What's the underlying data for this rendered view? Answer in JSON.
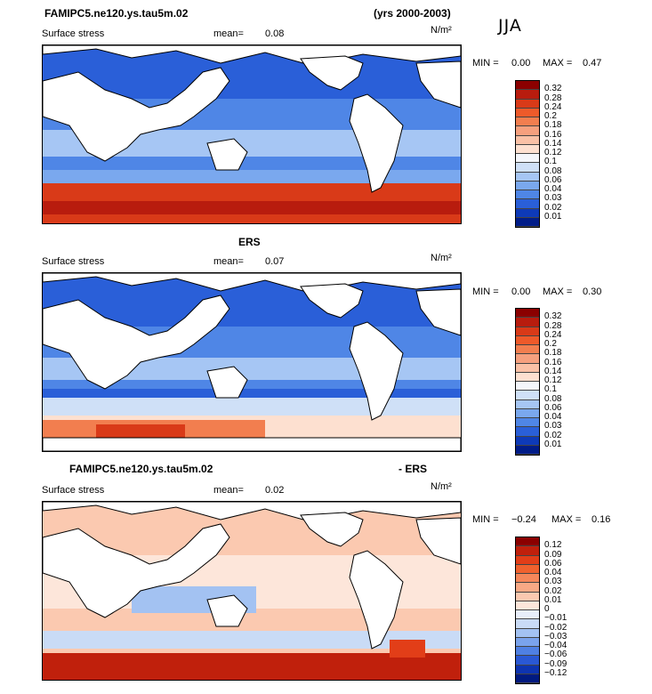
{
  "header": {
    "title_left": "FAMIPC5.ne120.ys.tau5m.02",
    "title_right": "(yrs 2000-2003)",
    "season": "JJA"
  },
  "panels": [
    {
      "title": "",
      "variable": "Surface stress",
      "mean_label": "mean=",
      "mean_value": "0.08",
      "units": "N/m²",
      "min_label": "MIN =",
      "min_value": "0.00",
      "max_label": "MAX =",
      "max_value": "0.47",
      "colorbar": [
        "0.32",
        "0.28",
        "0.24",
        "0.2",
        "0.18",
        "0.16",
        "0.14",
        "0.12",
        "0.1",
        "0.08",
        "0.06",
        "0.04",
        "0.03",
        "0.02",
        "0.01"
      ],
      "colors": [
        "#8b0000",
        "#b81c0e",
        "#d93a18",
        "#ee5a2a",
        "#f27e4f",
        "#f6a07e",
        "#fac1a6",
        "#fde0d0",
        "#f4f6fb",
        "#cfe0f7",
        "#a6c6f4",
        "#7aa8ee",
        "#4f86e6",
        "#2a5fd8",
        "#0e3ab8",
        "#001c88"
      ]
    },
    {
      "title": "ERS",
      "variable": "Surface stress",
      "mean_label": "mean=",
      "mean_value": "0.07",
      "units": "N/m²",
      "min_label": "MIN =",
      "min_value": "0.00",
      "max_label": "MAX =",
      "max_value": "0.30",
      "colorbar": [
        "0.32",
        "0.28",
        "0.24",
        "0.2",
        "0.18",
        "0.16",
        "0.14",
        "0.12",
        "0.1",
        "0.08",
        "0.06",
        "0.04",
        "0.03",
        "0.02",
        "0.01"
      ],
      "colors": [
        "#8b0000",
        "#b81c0e",
        "#d93a18",
        "#ee5a2a",
        "#f27e4f",
        "#f6a07e",
        "#fac1a6",
        "#fde0d0",
        "#f4f6fb",
        "#cfe0f7",
        "#a6c6f4",
        "#7aa8ee",
        "#4f86e6",
        "#2a5fd8",
        "#0e3ab8",
        "#001c88"
      ]
    },
    {
      "title_left": "FAMIPC5.ne120.ys.tau5m.02",
      "title_right": "- ERS",
      "variable": "Surface stress",
      "mean_label": "mean=",
      "mean_value": "0.02",
      "units": "N/m²",
      "min_label": "MIN =",
      "min_value": "−0.24",
      "max_label": "MAX =",
      "max_value": "0.16",
      "colorbar": [
        "0.12",
        "0.09",
        "0.06",
        "0.04",
        "0.03",
        "0.02",
        "0.01",
        "0",
        "−0.01",
        "−0.02",
        "−0.03",
        "−0.04",
        "−0.06",
        "−0.09",
        "−0.12"
      ],
      "colors": [
        "#8b0000",
        "#c0200c",
        "#e23e18",
        "#f0622e",
        "#f5875a",
        "#f8a985",
        "#fbc9b0",
        "#fde6da",
        "#e8eefa",
        "#c9dbf6",
        "#a3c2f2",
        "#7aa3ec",
        "#4f80e3",
        "#2a58d4",
        "#0e34b0",
        "#001a80"
      ]
    }
  ]
}
